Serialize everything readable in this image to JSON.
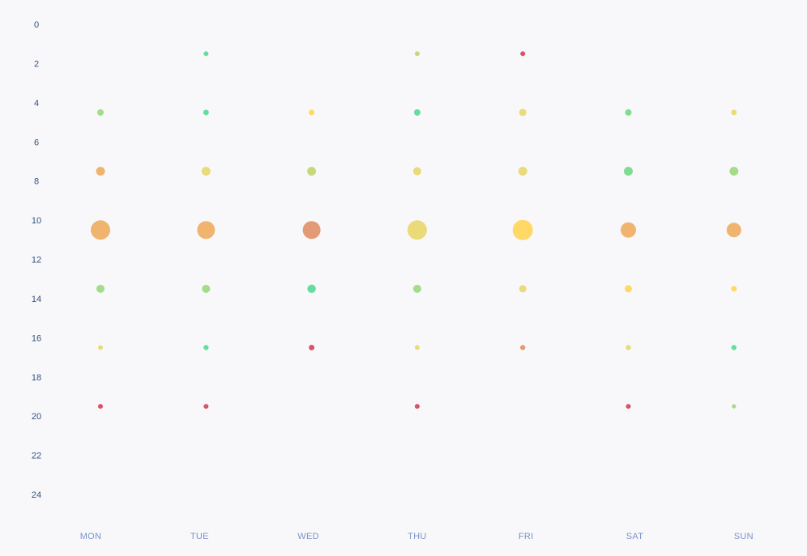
{
  "chart_data": {
    "type": "scatter",
    "subtype": "bubble",
    "title": "",
    "xlabel": "",
    "ylabel": "",
    "categories": [
      "MON",
      "TUE",
      "WED",
      "THU",
      "FRI",
      "SAT",
      "SUN"
    ],
    "y_ticks": [
      "0",
      "2",
      "4",
      "6",
      "8",
      "10",
      "12",
      "14",
      "16",
      "18",
      "20",
      "22",
      "24"
    ],
    "ylim": [
      0,
      24
    ],
    "y_inverted": true,
    "grid": false,
    "colors": {
      "orange": "#f0b46e",
      "salmon": "#e49a74",
      "olive": "#eada78",
      "yellow": "#ffd866",
      "green": "#a3dd8a",
      "mint": "#80dc90",
      "teal": "#66dd9e",
      "lime": "#c5d97a",
      "red": "#d9536a"
    },
    "points": [
      {
        "day": "TUE",
        "y": 1.5,
        "size": 9,
        "color": "teal"
      },
      {
        "day": "THU",
        "y": 1.5,
        "size": 9,
        "color": "lime"
      },
      {
        "day": "FRI",
        "y": 1.5,
        "size": 9,
        "color": "red"
      },
      {
        "day": "MON",
        "y": 4.5,
        "size": 16,
        "color": "green"
      },
      {
        "day": "TUE",
        "y": 4.5,
        "size": 12,
        "color": "teal"
      },
      {
        "day": "WED",
        "y": 4.5,
        "size": 12,
        "color": "yellow"
      },
      {
        "day": "THU",
        "y": 4.5,
        "size": 16,
        "color": "teal"
      },
      {
        "day": "FRI",
        "y": 4.5,
        "size": 20,
        "color": "olive"
      },
      {
        "day": "SAT",
        "y": 4.5,
        "size": 16,
        "color": "mint"
      },
      {
        "day": "SUN",
        "y": 4.5,
        "size": 12,
        "color": "olive"
      },
      {
        "day": "MON",
        "y": 7.5,
        "size": 30,
        "color": "orange"
      },
      {
        "day": "TUE",
        "y": 7.5,
        "size": 30,
        "color": "olive"
      },
      {
        "day": "WED",
        "y": 7.5,
        "size": 30,
        "color": "lime"
      },
      {
        "day": "THU",
        "y": 7.5,
        "size": 25,
        "color": "olive"
      },
      {
        "day": "FRI",
        "y": 7.5,
        "size": 30,
        "color": "olive"
      },
      {
        "day": "SAT",
        "y": 7.5,
        "size": 30,
        "color": "mint"
      },
      {
        "day": "SUN",
        "y": 7.5,
        "size": 30,
        "color": "green"
      },
      {
        "day": "MON",
        "y": 10.5,
        "size": 144,
        "color": "orange"
      },
      {
        "day": "TUE",
        "y": 10.5,
        "size": 121,
        "color": "orange"
      },
      {
        "day": "WED",
        "y": 10.5,
        "size": 121,
        "color": "salmon"
      },
      {
        "day": "THU",
        "y": 10.5,
        "size": 144,
        "color": "olive"
      },
      {
        "day": "FRI",
        "y": 10.5,
        "size": 156,
        "color": "yellow"
      },
      {
        "day": "SAT",
        "y": 10.5,
        "size": 90,
        "color": "orange"
      },
      {
        "day": "SUN",
        "y": 10.5,
        "size": 81,
        "color": "orange"
      },
      {
        "day": "MON",
        "y": 13.5,
        "size": 25,
        "color": "green"
      },
      {
        "day": "TUE",
        "y": 13.5,
        "size": 25,
        "color": "green"
      },
      {
        "day": "WED",
        "y": 13.5,
        "size": 27,
        "color": "teal"
      },
      {
        "day": "THU",
        "y": 13.5,
        "size": 25,
        "color": "green"
      },
      {
        "day": "FRI",
        "y": 13.5,
        "size": 20,
        "color": "olive"
      },
      {
        "day": "SAT",
        "y": 13.5,
        "size": 20,
        "color": "yellow"
      },
      {
        "day": "SUN",
        "y": 13.5,
        "size": 12,
        "color": "yellow"
      },
      {
        "day": "MON",
        "y": 16.5,
        "size": 9,
        "color": "olive"
      },
      {
        "day": "TUE",
        "y": 16.5,
        "size": 10,
        "color": "teal"
      },
      {
        "day": "WED",
        "y": 16.5,
        "size": 12,
        "color": "red"
      },
      {
        "day": "THU",
        "y": 16.5,
        "size": 9,
        "color": "olive"
      },
      {
        "day": "FRI",
        "y": 16.5,
        "size": 10,
        "color": "salmon"
      },
      {
        "day": "SAT",
        "y": 16.5,
        "size": 10,
        "color": "olive"
      },
      {
        "day": "SUN",
        "y": 16.5,
        "size": 10,
        "color": "teal"
      },
      {
        "day": "MON",
        "y": 19.5,
        "size": 9,
        "color": "red"
      },
      {
        "day": "TUE",
        "y": 19.5,
        "size": 9,
        "color": "red"
      },
      {
        "day": "THU",
        "y": 19.5,
        "size": 9,
        "color": "red"
      },
      {
        "day": "SAT",
        "y": 19.5,
        "size": 9,
        "color": "red"
      },
      {
        "day": "SUN",
        "y": 19.5,
        "size": 7,
        "color": "green"
      }
    ]
  }
}
